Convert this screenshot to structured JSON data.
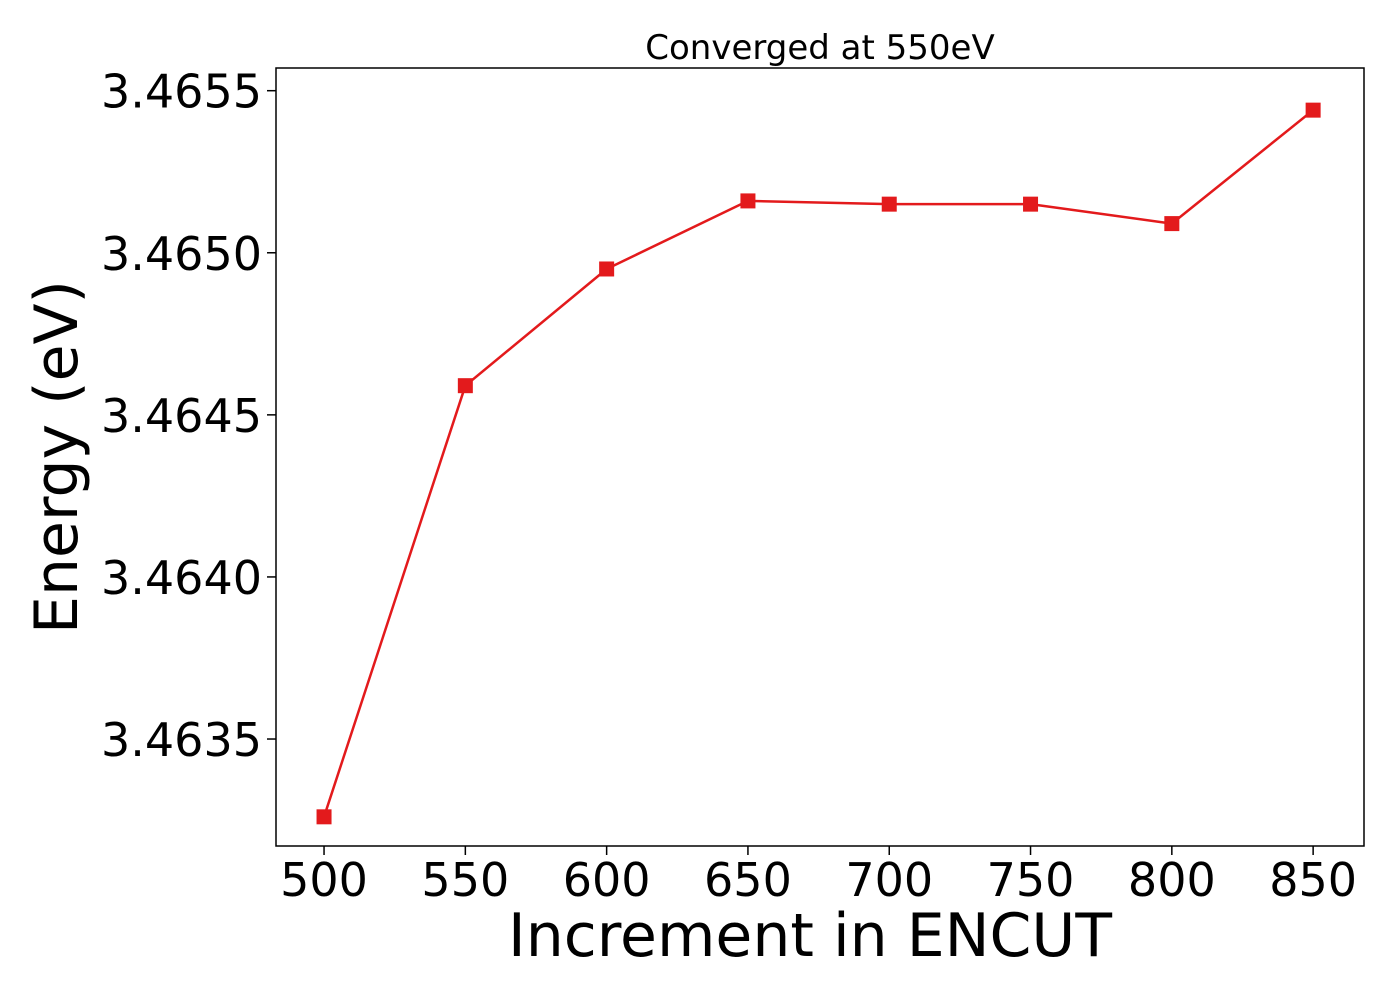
{
  "chart_data": {
    "type": "line",
    "title": "Converged at 550eV",
    "xlabel": "Increment in ENCUT",
    "ylabel": "Energy (eV)",
    "x": [
      500,
      550,
      600,
      650,
      700,
      750,
      800,
      850
    ],
    "series": [
      {
        "values": [
          3.46326,
          3.46459,
          3.46495,
          3.46516,
          3.46515,
          3.46515,
          3.46509,
          3.46544
        ],
        "color": "#e31a1c",
        "marker": "square"
      }
    ],
    "xticks": [
      500,
      550,
      600,
      650,
      700,
      750,
      800,
      850
    ],
    "xtick_labels": [
      "500",
      "550",
      "600",
      "650",
      "700",
      "750",
      "800",
      "850"
    ],
    "yticks": [
      3.4635,
      3.464,
      3.4645,
      3.465,
      3.4655
    ],
    "ytick_labels": [
      "3.4635",
      "3.4640",
      "3.4645",
      "3.4650",
      "3.4655"
    ],
    "xlim": [
      483,
      868
    ],
    "ylim": [
      3.46317,
      3.46557
    ],
    "grid": false
  }
}
